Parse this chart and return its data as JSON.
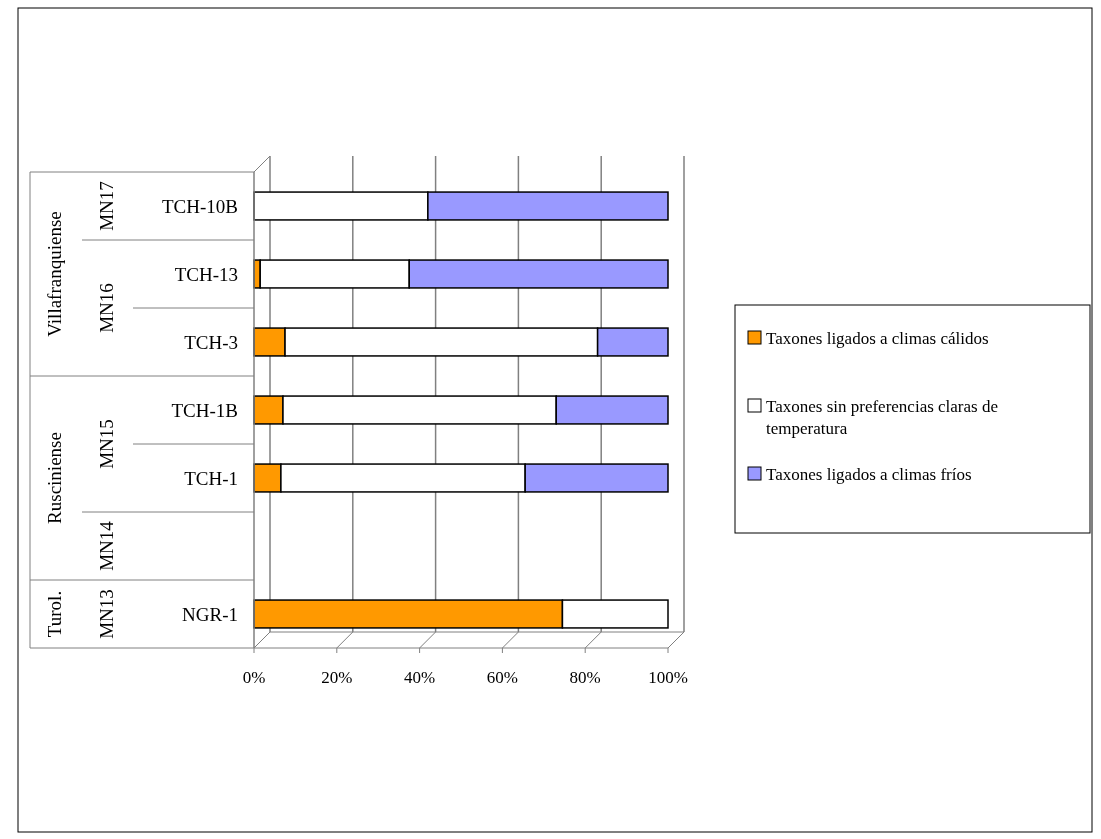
{
  "chart_data": {
    "type": "bar",
    "orientation": "horizontal",
    "stacked": true,
    "categories": [
      "TCH-10B",
      "TCH-13",
      "TCH-3",
      "TCH-1B",
      "TCH-1",
      null,
      "NGR-1"
    ],
    "series": [
      {
        "name": "Taxones ligados a climas cálidos",
        "color": "#ff9900",
        "values": [
          0,
          1.5,
          7.5,
          7,
          6.5,
          null,
          74.5
        ]
      },
      {
        "name": "Taxones sin preferencias claras de temperatura",
        "color": "#ffffff",
        "values": [
          42,
          36,
          75.5,
          66,
          59,
          null,
          25.5
        ]
      },
      {
        "name": "Taxones ligados a climas fríos",
        "color": "#9999ff",
        "values": [
          58,
          62.5,
          17,
          27,
          34.5,
          null,
          0
        ]
      }
    ],
    "xlim": [
      0,
      100
    ],
    "xticks": [
      {
        "value": 0,
        "label": "0%"
      },
      {
        "value": 20,
        "label": "20%"
      },
      {
        "value": 40,
        "label": "40%"
      },
      {
        "value": 60,
        "label": "60%"
      },
      {
        "value": 80,
        "label": "80%"
      },
      {
        "value": 100,
        "label": "100%"
      }
    ],
    "grid": "x",
    "legend": "right",
    "annotations": [
      "Villafranquiense",
      "Rusciniense",
      "Turol.",
      "MN17",
      "MN16",
      "MN15",
      "MN14",
      "MN13"
    ]
  }
}
